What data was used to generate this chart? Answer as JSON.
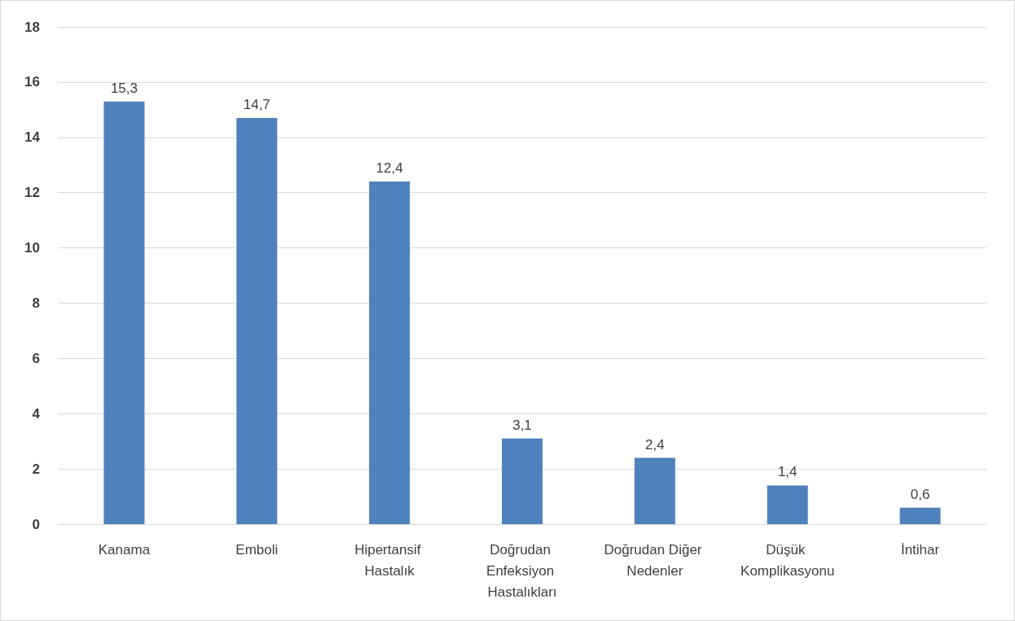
{
  "chart_data": {
    "type": "bar",
    "categories": [
      "Kanama",
      "Emboli",
      "Hipertansif Hastalık",
      "Doğrudan Enfeksiyon Hastalıkları",
      "Doğrudan Diğer Nedenler",
      "Düşük Komplikasyonu",
      "İntihar"
    ],
    "values": [
      15.3,
      14.7,
      12.4,
      3.1,
      2.4,
      1.4,
      0.6
    ],
    "value_labels": [
      "15,3",
      "14,7",
      "12,4",
      "3,1",
      "2,4",
      "1,4",
      "0,6"
    ],
    "color": "#4f81bd",
    "ylim": [
      0,
      18
    ],
    "yticks": [
      0,
      2,
      4,
      6,
      8,
      10,
      12,
      14,
      16,
      18
    ],
    "grid": "y"
  }
}
